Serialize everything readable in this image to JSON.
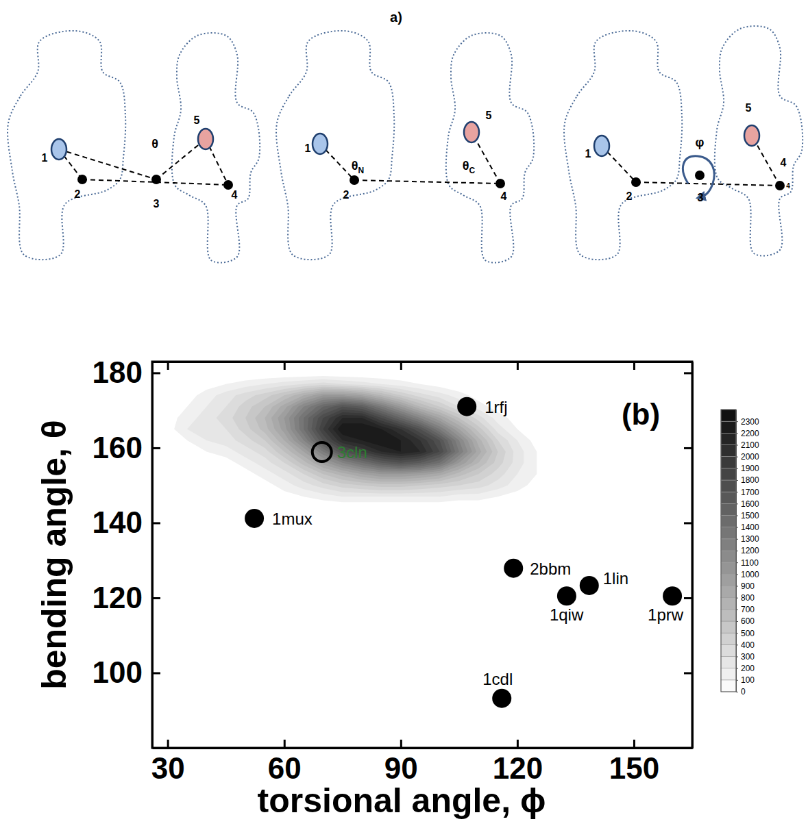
{
  "diagram": {
    "title": "a)",
    "panels": [
      {
        "labels": [
          "1",
          "2",
          "3",
          "4",
          "5"
        ],
        "angle": [
          {
            "text": "θ"
          }
        ]
      },
      {
        "labels": [
          "1",
          "2",
          "4",
          "5"
        ],
        "angle": [
          {
            "text": "θ",
            "sub": "N"
          },
          {
            "text": "θ",
            "sub": "C"
          }
        ]
      },
      {
        "labels": [
          "1",
          "2",
          "3",
          "4",
          "5",
          "4"
        ],
        "angle": [
          {
            "text": "φ"
          }
        ]
      }
    ]
  },
  "chart_data": {
    "type": "scatter",
    "panel_label": "(b)",
    "x_label": "torsional angle, ϕ",
    "y_label": "bending angle, θ",
    "xlim": [
      26,
      165
    ],
    "ylim": [
      80,
      183
    ],
    "xticks": [
      30,
      60,
      90,
      120,
      150
    ],
    "yticks": [
      100,
      120,
      140,
      160,
      180
    ],
    "series": [
      {
        "marker": "circle",
        "color": "#000000",
        "labels": [
          "1rfj",
          "1mux",
          "2bbm",
          "1lin",
          "1qiw",
          "1prw",
          "1cdl"
        ],
        "x": [
          107,
          52.3,
          119,
          138.5,
          132.7,
          159.9,
          116
        ],
        "values": [
          171,
          141.2,
          127.9,
          123.3,
          120.5,
          120.5,
          93.2
        ]
      },
      {
        "marker": "open_circle",
        "color": "#2e7d32",
        "labels": [
          "3cln"
        ],
        "x": [
          69.7
        ],
        "values": [
          158.9
        ]
      }
    ],
    "density": {
      "x": [
        30,
        35,
        40,
        45,
        50,
        55,
        60,
        65,
        70,
        75,
        80,
        85,
        90,
        95,
        100,
        105,
        110,
        115,
        120,
        125,
        130
      ],
      "y": [
        180,
        177,
        174,
        171,
        168,
        165,
        162,
        159,
        156,
        153,
        150,
        147,
        144
      ],
      "values": [
        [
          0,
          0,
          0,
          0,
          0,
          0,
          0,
          0,
          0,
          0,
          0,
          0,
          0,
          0,
          0,
          0,
          0,
          0,
          0,
          0,
          0
        ],
        [
          0,
          0,
          50,
          100,
          150,
          200,
          250,
          300,
          350,
          300,
          250,
          200,
          150,
          100,
          50,
          0,
          0,
          0,
          0,
          0,
          0
        ],
        [
          0,
          50,
          150,
          250,
          350,
          450,
          600,
          800,
          1000,
          1000,
          900,
          700,
          500,
          350,
          250,
          150,
          50,
          0,
          0,
          0,
          0
        ],
        [
          0,
          100,
          200,
          300,
          450,
          600,
          850,
          1200,
          1500,
          1700,
          1600,
          1300,
          1000,
          700,
          500,
          300,
          150,
          50,
          0,
          0,
          0
        ],
        [
          50,
          150,
          250,
          350,
          500,
          700,
          1000,
          1400,
          1800,
          2100,
          2100,
          1800,
          1500,
          1200,
          900,
          600,
          350,
          150,
          50,
          0,
          0
        ],
        [
          50,
          200,
          250,
          300,
          450,
          650,
          950,
          1400,
          1900,
          2300,
          2300,
          2200,
          2000,
          1700,
          1300,
          900,
          550,
          250,
          100,
          0,
          0
        ],
        [
          0,
          100,
          200,
          250,
          350,
          500,
          800,
          1200,
          1700,
          2100,
          2200,
          2300,
          2200,
          2000,
          1700,
          1200,
          750,
          400,
          200,
          50,
          0
        ],
        [
          0,
          0,
          100,
          150,
          250,
          350,
          600,
          900,
          1300,
          1700,
          1900,
          2100,
          2200,
          2100,
          1800,
          1300,
          850,
          500,
          250,
          100,
          0
        ],
        [
          0,
          0,
          0,
          50,
          150,
          250,
          400,
          650,
          950,
          1200,
          1400,
          1600,
          1700,
          1600,
          1400,
          1000,
          700,
          450,
          250,
          100,
          0
        ],
        [
          0,
          0,
          0,
          0,
          50,
          150,
          250,
          400,
          600,
          750,
          900,
          1000,
          1000,
          950,
          850,
          650,
          500,
          350,
          200,
          100,
          0
        ],
        [
          0,
          0,
          0,
          0,
          0,
          50,
          150,
          250,
          350,
          450,
          500,
          550,
          550,
          500,
          450,
          400,
          350,
          250,
          150,
          50,
          0
        ],
        [
          0,
          0,
          0,
          0,
          0,
          0,
          50,
          100,
          150,
          200,
          200,
          200,
          200,
          200,
          200,
          150,
          150,
          100,
          50,
          0,
          0
        ],
        [
          0,
          0,
          0,
          0,
          0,
          0,
          0,
          0,
          0,
          0,
          0,
          0,
          0,
          0,
          0,
          0,
          0,
          0,
          0,
          0,
          0
        ]
      ]
    },
    "colorbar": {
      "range": [
        0,
        2400
      ],
      "ticks": [
        0,
        100,
        200,
        300,
        400,
        500,
        600,
        700,
        800,
        900,
        1000,
        1100,
        1200,
        1300,
        1400,
        1500,
        1600,
        1700,
        1800,
        1900,
        2000,
        2100,
        2200,
        2300
      ]
    }
  }
}
